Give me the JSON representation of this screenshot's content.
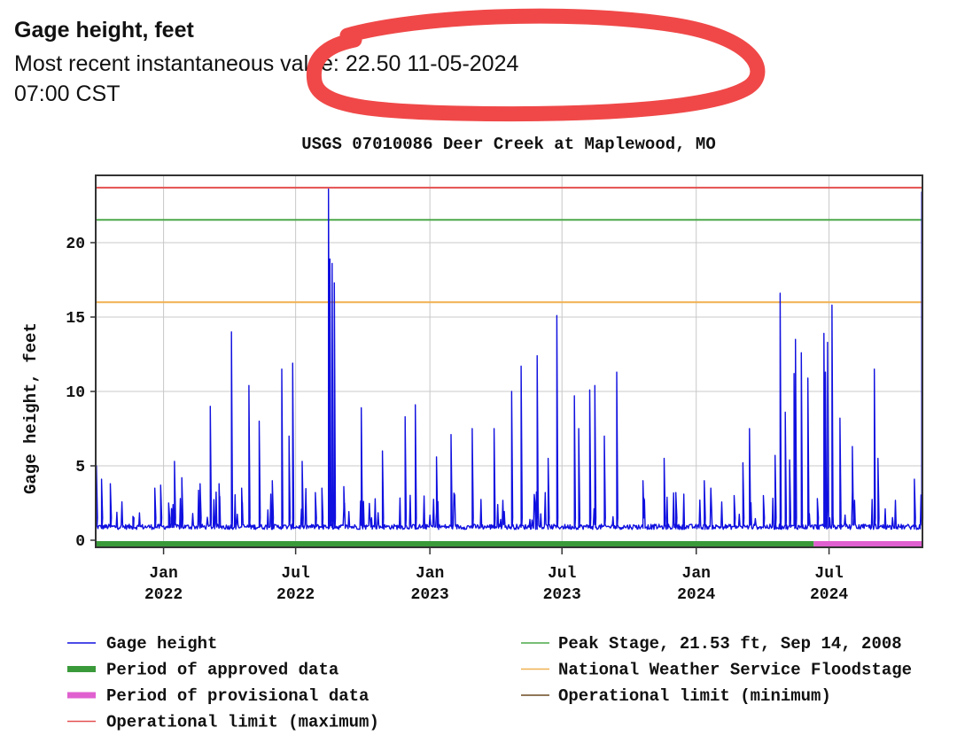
{
  "header": {
    "title": "Gage height, feet",
    "recent_label": "Most recent instantaneous value:",
    "recent_value": "22.50",
    "recent_date": "11-05-2024",
    "recent_time": "07:00 CST"
  },
  "annotation": {
    "color": "#f04848",
    "shape": "hand-drawn ellipse"
  },
  "chart_data": {
    "type": "line",
    "title": "USGS 07010086 Deer Creek at Maplewood, MO",
    "ylabel": "Gage height, feet",
    "xlabel": "",
    "xlim": [
      "2021-09-30",
      "2024-11-06"
    ],
    "ylim": [
      0,
      24
    ],
    "y_ticks": [
      0,
      5,
      10,
      15,
      20
    ],
    "x_ticks": [
      {
        "date": "2022-01-01",
        "line1": "Jan",
        "line2": "2022"
      },
      {
        "date": "2022-07-01",
        "line1": "Jul",
        "line2": "2022"
      },
      {
        "date": "2023-01-01",
        "line1": "Jan",
        "line2": "2023"
      },
      {
        "date": "2023-07-01",
        "line1": "Jul",
        "line2": "2023"
      },
      {
        "date": "2024-01-01",
        "line1": "Jan",
        "line2": "2024"
      },
      {
        "date": "2024-07-01",
        "line1": "Jul",
        "line2": "2024"
      }
    ],
    "grid": true,
    "reference_lines": [
      {
        "name": "Operational limit (maximum)",
        "value": 23.7,
        "color": "#e45050"
      },
      {
        "name": "Peak Stage",
        "value": 21.53,
        "color": "#4aa84a"
      },
      {
        "name": "National Weather Service Floodstage",
        "value": 16.0,
        "color": "#f0b050"
      }
    ],
    "base_level": 0.9,
    "approved_period": {
      "start": "2021-09-30",
      "end": "2024-06-10",
      "color": "#3a9a3a"
    },
    "provisional_period": {
      "start": "2024-06-10",
      "end": "2024-11-06",
      "color": "#e060d0"
    },
    "series": [
      {
        "name": "Gage height",
        "color": "#1010e0",
        "peaks": [
          [
            "2021-10-01",
            5.0
          ],
          [
            "2021-10-08",
            4.1
          ],
          [
            "2021-10-20",
            3.8
          ],
          [
            "2021-11-20",
            1.6
          ],
          [
            "2021-12-20",
            3.5
          ],
          [
            "2021-12-28",
            3.7
          ],
          [
            "2022-01-08",
            2.5
          ],
          [
            "2022-01-16",
            5.3
          ],
          [
            "2022-01-26",
            4.2
          ],
          [
            "2022-02-20",
            3.8
          ],
          [
            "2022-03-06",
            9.0
          ],
          [
            "2022-03-18",
            3.8
          ],
          [
            "2022-04-04",
            14.0
          ],
          [
            "2022-04-18",
            3.5
          ],
          [
            "2022-04-28",
            10.4
          ],
          [
            "2022-05-12",
            8.0
          ],
          [
            "2022-05-30",
            4.0
          ],
          [
            "2022-06-12",
            11.5
          ],
          [
            "2022-06-22",
            7.0
          ],
          [
            "2022-06-27",
            11.9
          ],
          [
            "2022-07-10",
            5.3
          ],
          [
            "2022-07-28",
            3.2
          ],
          [
            "2022-08-06",
            3.5
          ],
          [
            "2022-08-15",
            23.6
          ],
          [
            "2022-08-17",
            18.9
          ],
          [
            "2022-08-20",
            18.6
          ],
          [
            "2022-08-23",
            17.3
          ],
          [
            "2022-09-05",
            3.6
          ],
          [
            "2022-09-29",
            8.9
          ],
          [
            "2022-10-28",
            6.0
          ],
          [
            "2022-11-28",
            8.3
          ],
          [
            "2022-12-12",
            9.1
          ],
          [
            "2023-01-10",
            5.6
          ],
          [
            "2023-01-30",
            7.1
          ],
          [
            "2023-02-28",
            7.5
          ],
          [
            "2023-03-30",
            7.5
          ],
          [
            "2023-04-23",
            10.0
          ],
          [
            "2023-05-06",
            11.7
          ],
          [
            "2023-05-28",
            12.4
          ],
          [
            "2023-06-12",
            5.5
          ],
          [
            "2023-06-24",
            15.1
          ],
          [
            "2023-07-18",
            9.7
          ],
          [
            "2023-07-24",
            7.5
          ],
          [
            "2023-08-08",
            10.1
          ],
          [
            "2023-08-15",
            10.4
          ],
          [
            "2023-08-28",
            7.0
          ],
          [
            "2023-09-14",
            11.3
          ],
          [
            "2023-10-20",
            4.0
          ],
          [
            "2023-11-18",
            5.5
          ],
          [
            "2023-12-04",
            3.2
          ],
          [
            "2024-01-12",
            4.0
          ],
          [
            "2024-02-22",
            3.0
          ],
          [
            "2024-03-05",
            5.2
          ],
          [
            "2024-03-14",
            7.5
          ],
          [
            "2024-04-02",
            3.0
          ],
          [
            "2024-04-18",
            5.7
          ],
          [
            "2024-04-25",
            16.6
          ],
          [
            "2024-05-02",
            8.6
          ],
          [
            "2024-05-08",
            5.4
          ],
          [
            "2024-05-14",
            11.2
          ],
          [
            "2024-05-16",
            13.5
          ],
          [
            "2024-05-24",
            12.6
          ],
          [
            "2024-06-02",
            10.9
          ],
          [
            "2024-06-15",
            2.8
          ],
          [
            "2024-06-24",
            13.9
          ],
          [
            "2024-06-26",
            11.3
          ],
          [
            "2024-06-29",
            13.3
          ],
          [
            "2024-07-05",
            15.8
          ],
          [
            "2024-07-16",
            8.2
          ],
          [
            "2024-08-02",
            6.3
          ],
          [
            "2024-09-01",
            11.5
          ],
          [
            "2024-09-06",
            5.5
          ],
          [
            "2024-10-26",
            4.1
          ],
          [
            "2024-11-05",
            23.4
          ]
        ]
      }
    ],
    "legend": {
      "placement": "bottom",
      "left": [
        {
          "label": "Gage height",
          "color": "#1010e0",
          "style": "thin"
        },
        {
          "label": "Period of approved data",
          "color": "#3a9a3a",
          "style": "thick"
        },
        {
          "label": "Period of provisional data",
          "color": "#e060d0",
          "style": "thick"
        },
        {
          "label": "Operational limit (maximum)",
          "color": "#e45050",
          "style": "thin"
        }
      ],
      "right": [
        {
          "label": "Peak Stage, 21.53 ft, Sep 14, 2008",
          "color": "#4aa84a",
          "style": "thin"
        },
        {
          "label": "National Weather Service Floodstage",
          "color": "#f0b050",
          "style": "thin"
        },
        {
          "label": "Operational limit (minimum)",
          "color": "#6b4a20",
          "style": "thin"
        }
      ]
    }
  }
}
